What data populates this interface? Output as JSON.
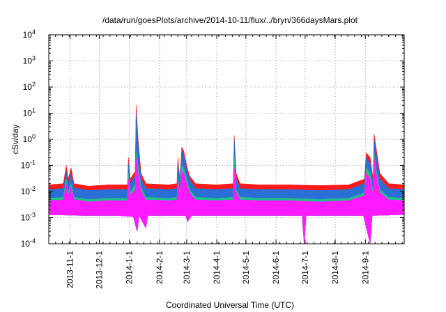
{
  "chart_data": {
    "type": "area",
    "title": "/data/run/goesPlots/archive/2014-10-11/flux/../bryn/366daysMars.plot",
    "xlabel": "Coordinated Universal Time (UTC)",
    "ylabel": "cSv/day",
    "yscale": "log",
    "ylim": [
      0.0001,
      10000
    ],
    "xlim": [
      "2013-10-10",
      "2014-10-11"
    ],
    "grid": true,
    "y_ticks": [
      {
        "value": 0.0001,
        "base": "10",
        "exp": "-4"
      },
      {
        "value": 0.001,
        "base": "10",
        "exp": "-3"
      },
      {
        "value": 0.01,
        "base": "10",
        "exp": "-2"
      },
      {
        "value": 0.1,
        "base": "10",
        "exp": "-1"
      },
      {
        "value": 1,
        "base": "10",
        "exp": "0"
      },
      {
        "value": 10,
        "base": "10",
        "exp": "1"
      },
      {
        "value": 100,
        "base": "10",
        "exp": "2"
      },
      {
        "value": 1000,
        "base": "10",
        "exp": "3"
      },
      {
        "value": 10000,
        "base": "10",
        "exp": "4"
      }
    ],
    "x_ticks": [
      {
        "date": "2013-11-01",
        "label": "2013-11-1"
      },
      {
        "date": "2013-12-01",
        "label": "2013-12-1"
      },
      {
        "date": "2014-01-01",
        "label": "2014-1-1"
      },
      {
        "date": "2014-02-01",
        "label": "2014-2-1"
      },
      {
        "date": "2014-03-01",
        "label": "2014-3-1"
      },
      {
        "date": "2014-04-01",
        "label": "2014-4-1"
      },
      {
        "date": "2014-05-01",
        "label": "2014-5-1"
      },
      {
        "date": "2014-06-01",
        "label": "2014-6-1"
      },
      {
        "date": "2014-07-01",
        "label": "2014-7-1"
      },
      {
        "date": "2014-08-01",
        "label": "2014-8-1"
      },
      {
        "date": "2014-09-01",
        "label": "2014-9-1"
      }
    ],
    "series": [
      {
        "color": "#ff1a1a",
        "points": [
          [
            "2013-10-10",
            0.018
          ],
          [
            "2013-10-25",
            0.02
          ],
          [
            "2013-10-28",
            0.1
          ],
          [
            "2013-10-30",
            0.03
          ],
          [
            "2013-11-02",
            0.08
          ],
          [
            "2013-11-05",
            0.02
          ],
          [
            "2013-11-20",
            0.016
          ],
          [
            "2013-12-10",
            0.018
          ],
          [
            "2013-12-30",
            0.018
          ],
          [
            "2013-12-31",
            0.2
          ],
          [
            "2014-01-02",
            0.03
          ],
          [
            "2014-01-07",
            0.06
          ],
          [
            "2014-01-08",
            20
          ],
          [
            "2014-01-10",
            1.0
          ],
          [
            "2014-01-13",
            0.05
          ],
          [
            "2014-01-18",
            0.02
          ],
          [
            "2014-02-10",
            0.018
          ],
          [
            "2014-02-19",
            0.02
          ],
          [
            "2014-02-20",
            0.2
          ],
          [
            "2014-02-22",
            0.03
          ],
          [
            "2014-02-24",
            0.5
          ],
          [
            "2014-02-26",
            0.35
          ],
          [
            "2014-03-01",
            0.1
          ],
          [
            "2014-03-04",
            0.04
          ],
          [
            "2014-03-10",
            0.02
          ],
          [
            "2014-04-01",
            0.018
          ],
          [
            "2014-04-18",
            0.02
          ],
          [
            "2014-04-19",
            1.4
          ],
          [
            "2014-04-21",
            0.05
          ],
          [
            "2014-04-25",
            0.02
          ],
          [
            "2014-05-15",
            0.018
          ],
          [
            "2014-06-15",
            0.018
          ],
          [
            "2014-07-15",
            0.017
          ],
          [
            "2014-08-15",
            0.018
          ],
          [
            "2014-08-31",
            0.03
          ],
          [
            "2014-09-02",
            0.3
          ],
          [
            "2014-09-06",
            0.2
          ],
          [
            "2014-09-09",
            0.03
          ],
          [
            "2014-09-10",
            1.6
          ],
          [
            "2014-09-12",
            0.5
          ],
          [
            "2014-09-16",
            0.05
          ],
          [
            "2014-09-25",
            0.02
          ],
          [
            "2014-10-11",
            0.018
          ]
        ]
      },
      {
        "color": "#2a6fd6",
        "points": [
          [
            "2013-10-10",
            0.012
          ],
          [
            "2013-10-25",
            0.013
          ],
          [
            "2013-10-28",
            0.06
          ],
          [
            "2013-10-30",
            0.02
          ],
          [
            "2013-11-02",
            0.05
          ],
          [
            "2013-11-05",
            0.014
          ],
          [
            "2013-11-20",
            0.011
          ],
          [
            "2013-12-10",
            0.012
          ],
          [
            "2013-12-30",
            0.012
          ],
          [
            "2013-12-31",
            0.12
          ],
          [
            "2014-01-02",
            0.02
          ],
          [
            "2014-01-07",
            0.04
          ],
          [
            "2014-01-08",
            10
          ],
          [
            "2014-01-10",
            0.6
          ],
          [
            "2014-01-13",
            0.03
          ],
          [
            "2014-01-18",
            0.013
          ],
          [
            "2014-02-10",
            0.012
          ],
          [
            "2014-02-19",
            0.013
          ],
          [
            "2014-02-20",
            0.12
          ],
          [
            "2014-02-22",
            0.02
          ],
          [
            "2014-02-24",
            0.35
          ],
          [
            "2014-02-26",
            0.25
          ],
          [
            "2014-03-01",
            0.07
          ],
          [
            "2014-03-04",
            0.03
          ],
          [
            "2014-03-10",
            0.013
          ],
          [
            "2014-04-01",
            0.012
          ],
          [
            "2014-04-18",
            0.013
          ],
          [
            "2014-04-19",
            1.0
          ],
          [
            "2014-04-21",
            0.03
          ],
          [
            "2014-04-25",
            0.013
          ],
          [
            "2014-05-15",
            0.012
          ],
          [
            "2014-06-15",
            0.012
          ],
          [
            "2014-07-15",
            0.011
          ],
          [
            "2014-08-15",
            0.012
          ],
          [
            "2014-08-31",
            0.02
          ],
          [
            "2014-09-02",
            0.2
          ],
          [
            "2014-09-06",
            0.12
          ],
          [
            "2014-09-09",
            0.02
          ],
          [
            "2014-09-10",
            1.0
          ],
          [
            "2014-09-12",
            0.3
          ],
          [
            "2014-09-16",
            0.03
          ],
          [
            "2014-09-25",
            0.013
          ],
          [
            "2014-10-11",
            0.012
          ]
        ]
      },
      {
        "color": "#1fc08a",
        "points": [
          [
            "2013-10-10",
            0.0055
          ],
          [
            "2013-10-25",
            0.006
          ],
          [
            "2013-10-28",
            0.03
          ],
          [
            "2013-10-30",
            0.009
          ],
          [
            "2013-11-02",
            0.02
          ],
          [
            "2013-11-05",
            0.006
          ],
          [
            "2013-11-20",
            0.005
          ],
          [
            "2013-12-10",
            0.0055
          ],
          [
            "2013-12-30",
            0.0055
          ],
          [
            "2013-12-31",
            0.05
          ],
          [
            "2014-01-02",
            0.009
          ],
          [
            "2014-01-07",
            0.02
          ],
          [
            "2014-01-08",
            0.35
          ],
          [
            "2014-01-10",
            0.1
          ],
          [
            "2014-01-13",
            0.015
          ],
          [
            "2014-01-18",
            0.006
          ],
          [
            "2014-02-10",
            0.0055
          ],
          [
            "2014-02-19",
            0.006
          ],
          [
            "2014-02-20",
            0.04
          ],
          [
            "2014-02-22",
            0.009
          ],
          [
            "2014-02-24",
            0.1
          ],
          [
            "2014-02-26",
            0.08
          ],
          [
            "2014-03-01",
            0.03
          ],
          [
            "2014-03-04",
            0.012
          ],
          [
            "2014-03-10",
            0.006
          ],
          [
            "2014-04-01",
            0.0055
          ],
          [
            "2014-04-18",
            0.006
          ],
          [
            "2014-04-19",
            0.2
          ],
          [
            "2014-04-21",
            0.012
          ],
          [
            "2014-04-25",
            0.006
          ],
          [
            "2014-05-15",
            0.0055
          ],
          [
            "2014-06-15",
            0.0055
          ],
          [
            "2014-07-15",
            0.005
          ],
          [
            "2014-08-15",
            0.0055
          ],
          [
            "2014-08-31",
            0.009
          ],
          [
            "2014-09-02",
            0.08
          ],
          [
            "2014-09-06",
            0.05
          ],
          [
            "2014-09-09",
            0.009
          ],
          [
            "2014-09-10",
            0.3
          ],
          [
            "2014-09-12",
            0.08
          ],
          [
            "2014-09-16",
            0.012
          ],
          [
            "2014-09-25",
            0.006
          ],
          [
            "2014-10-11",
            0.0055
          ]
        ]
      },
      {
        "color": "#ff1aff",
        "points": [
          [
            "2013-10-10",
            0.0045
          ],
          [
            "2013-10-25",
            0.0048
          ],
          [
            "2013-10-28",
            0.02
          ],
          [
            "2013-10-30",
            0.007
          ],
          [
            "2013-11-02",
            0.015
          ],
          [
            "2013-11-05",
            0.005
          ],
          [
            "2013-11-20",
            0.004
          ],
          [
            "2013-12-10",
            0.0045
          ],
          [
            "2013-12-30",
            0.0045
          ],
          [
            "2013-12-31",
            0.03
          ],
          [
            "2014-01-02",
            0.007
          ],
          [
            "2014-01-07",
            0.012
          ],
          [
            "2014-01-08",
            0.2
          ],
          [
            "2014-01-10",
            0.05
          ],
          [
            "2014-01-13",
            0.01
          ],
          [
            "2014-01-18",
            0.0048
          ],
          [
            "2014-02-10",
            0.0045
          ],
          [
            "2014-02-19",
            0.0048
          ],
          [
            "2014-02-20",
            0.025
          ],
          [
            "2014-02-22",
            0.007
          ],
          [
            "2014-02-24",
            0.06
          ],
          [
            "2014-02-26",
            0.05
          ],
          [
            "2014-03-01",
            0.02
          ],
          [
            "2014-03-04",
            0.009
          ],
          [
            "2014-03-10",
            0.0048
          ],
          [
            "2014-04-01",
            0.0045
          ],
          [
            "2014-04-18",
            0.0048
          ],
          [
            "2014-04-19",
            0.08
          ],
          [
            "2014-04-21",
            0.009
          ],
          [
            "2014-04-25",
            0.0048
          ],
          [
            "2014-05-15",
            0.0045
          ],
          [
            "2014-06-15",
            0.0045
          ],
          [
            "2014-07-15",
            0.004
          ],
          [
            "2014-08-15",
            0.0045
          ],
          [
            "2014-08-31",
            0.007
          ],
          [
            "2014-09-02",
            0.05
          ],
          [
            "2014-09-06",
            0.03
          ],
          [
            "2014-09-09",
            0.007
          ],
          [
            "2014-09-10",
            0.2
          ],
          [
            "2014-09-12",
            0.05
          ],
          [
            "2014-09-16",
            0.009
          ],
          [
            "2014-09-25",
            0.0048
          ],
          [
            "2014-10-11",
            0.0045
          ]
        ]
      }
    ],
    "lower_envelope": [
      [
        "2013-10-10",
        0.0013
      ],
      [
        "2013-11-15",
        0.0012
      ],
      [
        "2013-12-20",
        0.0012
      ],
      [
        "2014-01-05",
        0.0011
      ],
      [
        "2014-01-09",
        0.0003
      ],
      [
        "2014-01-11",
        0.0012
      ],
      [
        "2014-01-18",
        0.0004
      ],
      [
        "2014-01-20",
        0.0012
      ],
      [
        "2014-02-28",
        0.0012
      ],
      [
        "2014-03-02",
        0.0007
      ],
      [
        "2014-03-06",
        0.0012
      ],
      [
        "2014-05-20",
        0.0012
      ],
      [
        "2014-06-28",
        0.0012
      ],
      [
        "2014-06-30",
        0.0001
      ],
      [
        "2014-07-02",
        0.0012
      ],
      [
        "2014-08-30",
        0.0012
      ],
      [
        "2014-09-06",
        0.0001
      ],
      [
        "2014-09-08",
        0.0012
      ],
      [
        "2014-10-11",
        0.0013
      ]
    ]
  }
}
